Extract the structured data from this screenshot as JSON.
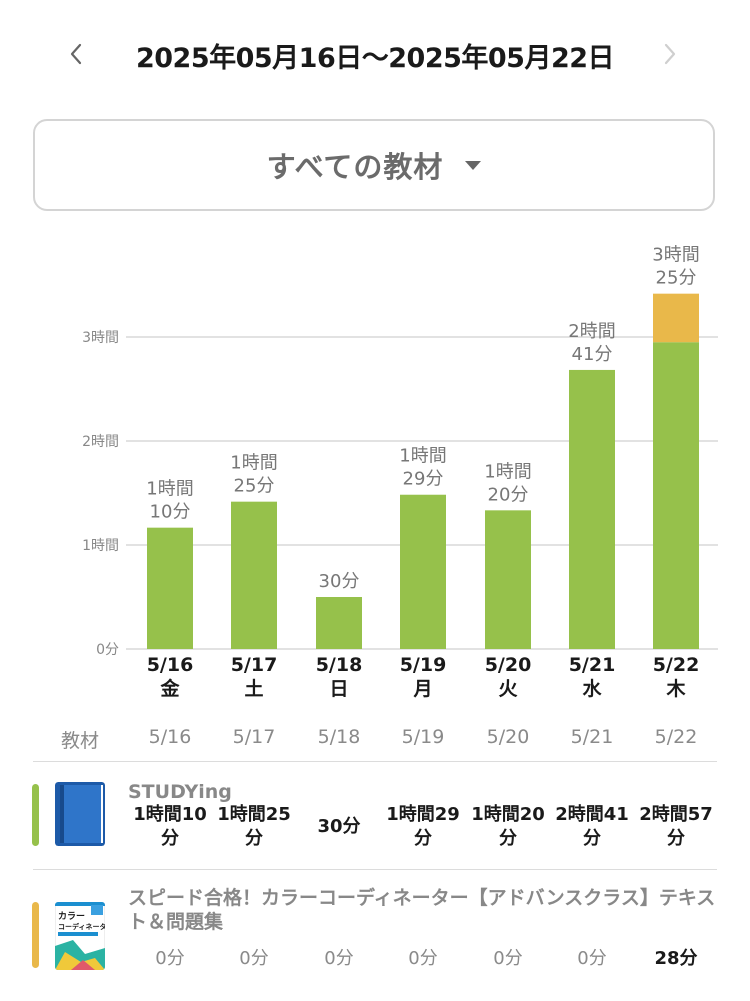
{
  "header": {
    "date_range": "2025年05月16日〜2025年05月22日",
    "prev_icon": "chevron-left-icon",
    "next_icon": "chevron-right-icon"
  },
  "filter": {
    "label": "すべての教材",
    "icon": "caret-down-icon"
  },
  "colors": {
    "studying": "#96c14b",
    "speed": "#e9b84a",
    "grid": "#d9d9d9"
  },
  "chart_data": {
    "type": "bar",
    "stacked": true,
    "y_unit": "minutes",
    "ylim": [
      0,
      205
    ],
    "ticks": [
      {
        "value": 0,
        "label": "0分"
      },
      {
        "value": 60,
        "label": "1時間"
      },
      {
        "value": 120,
        "label": "2時間"
      },
      {
        "value": 180,
        "label": "3時間"
      }
    ],
    "categories": [
      "5/16",
      "5/17",
      "5/18",
      "5/19",
      "5/20",
      "5/21",
      "5/22"
    ],
    "weekdays": [
      "金",
      "土",
      "日",
      "月",
      "火",
      "水",
      "木"
    ],
    "series": [
      {
        "name": "STUDYing",
        "color": "#96c14b",
        "values": [
          70,
          85,
          30,
          89,
          80,
          161,
          177
        ]
      },
      {
        "name": "スピード合格！カラーコーディネーター【アドバンスクラス】テキスト＆問題集",
        "color": "#e9b84a",
        "values": [
          0,
          0,
          0,
          0,
          0,
          0,
          28
        ]
      }
    ],
    "total_labels": [
      [
        "1時間",
        "10分"
      ],
      [
        "1時間",
        "25分"
      ],
      [
        "30分"
      ],
      [
        "1時間",
        "29分"
      ],
      [
        "1時間",
        "20分"
      ],
      [
        "2時間",
        "41分"
      ],
      [
        "3時間",
        "25分"
      ]
    ],
    "grid": true
  },
  "table": {
    "header_label": "教材",
    "dates": [
      "5/16",
      "5/17",
      "5/18",
      "5/19",
      "5/20",
      "5/21",
      "5/22"
    ],
    "rows": [
      {
        "title": "STUDYing",
        "cells": [
          [
            "1時間10",
            "分"
          ],
          [
            "1時間25",
            "分"
          ],
          [
            "30分"
          ],
          [
            "1時間29",
            "分"
          ],
          [
            "1時間20",
            "分"
          ],
          [
            "2時間41",
            "分"
          ],
          [
            "2時間57",
            "分"
          ]
        ]
      },
      {
        "title": "スピード合格！カラーコーディネーター【アドバンスクラス】テキスト＆問題集",
        "cover_text": [
          "カラー",
          "コーディネーター"
        ],
        "cells": [
          [
            "0分"
          ],
          [
            "0分"
          ],
          [
            "0分"
          ],
          [
            "0分"
          ],
          [
            "0分"
          ],
          [
            "0分"
          ],
          [
            "28分"
          ]
        ]
      }
    ]
  }
}
